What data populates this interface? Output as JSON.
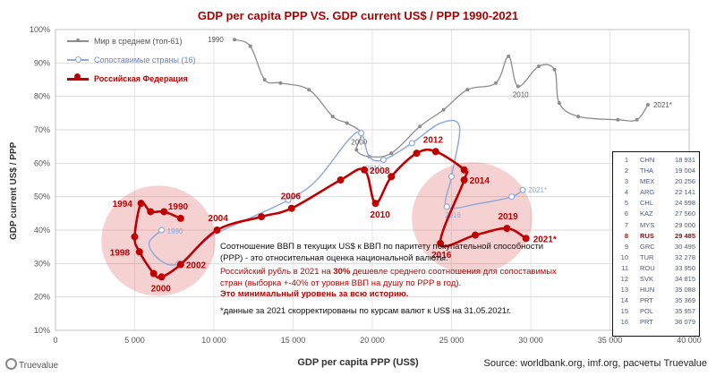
{
  "chart_data": {
    "type": "line",
    "title": "GDP per capita PPP   VS.   GDP current US$ / PPP   1990-2021",
    "xlabel": "GDP per capita PPP (US$)",
    "ylabel": "GDP current US$ / PPP",
    "xlim": [
      0,
      40000
    ],
    "ylim": [
      0.1,
      1.0
    ],
    "xticks": [
      0,
      5000,
      10000,
      15000,
      20000,
      25000,
      30000,
      35000,
      40000
    ],
    "xtick_labels": [
      "0",
      "5 000",
      "10 000",
      "15 000",
      "20 000",
      "25 000",
      "30 000",
      "35 000",
      "40 000"
    ],
    "yticks": [
      0.1,
      0.2,
      0.3,
      0.4,
      0.5,
      0.6,
      0.7,
      0.8,
      0.9,
      1.0
    ],
    "ytick_labels": [
      "10%",
      "20%",
      "30%",
      "40%",
      "50%",
      "60%",
      "70%",
      "80%",
      "90%",
      "100%"
    ],
    "grid": true,
    "legend_position": "top-left",
    "series": [
      {
        "name": "Мир в среднем (топ-61)",
        "color": "#8c8c8c",
        "marker": "dot",
        "points": [
          {
            "x": 11300,
            "y": 0.97,
            "label": "1990"
          },
          {
            "x": 12300,
            "y": 0.95
          },
          {
            "x": 13200,
            "y": 0.85
          },
          {
            "x": 14200,
            "y": 0.84
          },
          {
            "x": 16000,
            "y": 0.82
          },
          {
            "x": 17500,
            "y": 0.74
          },
          {
            "x": 18400,
            "y": 0.72
          },
          {
            "x": 19300,
            "y": 0.69
          },
          {
            "x": 19000,
            "y": 0.64,
            "label": "2000"
          },
          {
            "x": 19800,
            "y": 0.62
          },
          {
            "x": 21200,
            "y": 0.63
          },
          {
            "x": 23000,
            "y": 0.71
          },
          {
            "x": 24500,
            "y": 0.76
          },
          {
            "x": 26000,
            "y": 0.82
          },
          {
            "x": 27800,
            "y": 0.84
          },
          {
            "x": 28600,
            "y": 0.92
          },
          {
            "x": 29200,
            "y": 0.83,
            "label": "2010"
          },
          {
            "x": 30500,
            "y": 0.89
          },
          {
            "x": 31500,
            "y": 0.88
          },
          {
            "x": 31800,
            "y": 0.78
          },
          {
            "x": 33000,
            "y": 0.74
          },
          {
            "x": 35500,
            "y": 0.73
          },
          {
            "x": 36700,
            "y": 0.73
          },
          {
            "x": 37400,
            "y": 0.775,
            "label": "2021*"
          }
        ]
      },
      {
        "name": "Сопоставимые страны (16)",
        "color": "#8faadc",
        "marker": "circle",
        "points": [
          {
            "x": 6700,
            "y": 0.4,
            "label": "1990"
          },
          {
            "x": 5900,
            "y": 0.36
          },
          {
            "x": 6600,
            "y": 0.31
          },
          {
            "x": 7800,
            "y": 0.3
          },
          {
            "x": 9800,
            "y": 0.38
          },
          {
            "x": 12000,
            "y": 0.43
          },
          {
            "x": 14700,
            "y": 0.49
          },
          {
            "x": 16500,
            "y": 0.55
          },
          {
            "x": 18500,
            "y": 0.67
          },
          {
            "x": 19300,
            "y": 0.69
          },
          {
            "x": 19800,
            "y": 0.62
          },
          {
            "x": 20700,
            "y": 0.61,
            "label": "2010"
          },
          {
            "x": 22500,
            "y": 0.66
          },
          {
            "x": 24300,
            "y": 0.72
          },
          {
            "x": 25500,
            "y": 0.71
          },
          {
            "x": 25000,
            "y": 0.56
          },
          {
            "x": 24700,
            "y": 0.47,
            "label": "2016"
          },
          {
            "x": 26800,
            "y": 0.48
          },
          {
            "x": 28800,
            "y": 0.5
          },
          {
            "x": 29500,
            "y": 0.52,
            "label": "2021*"
          }
        ]
      },
      {
        "name": "Российская Федерация",
        "color": "#c00000",
        "marker": "dot",
        "points": [
          {
            "x": 7900,
            "y": 0.435,
            "label": "1990"
          },
          {
            "x": 6850,
            "y": 0.455
          },
          {
            "x": 6000,
            "y": 0.455
          },
          {
            "x": 5400,
            "y": 0.48,
            "label": "1994"
          },
          {
            "x": 5000,
            "y": 0.38
          },
          {
            "x": 5300,
            "y": 0.335,
            "label": "1998"
          },
          {
            "x": 6200,
            "y": 0.27
          },
          {
            "x": 6700,
            "y": 0.26,
            "label": "2000"
          },
          {
            "x": 7900,
            "y": 0.297,
            "label": "2002"
          },
          {
            "x": 10200,
            "y": 0.4,
            "label": "2004"
          },
          {
            "x": 13000,
            "y": 0.44
          },
          {
            "x": 14900,
            "y": 0.465,
            "label": "2006"
          },
          {
            "x": 18000,
            "y": 0.55
          },
          {
            "x": 19500,
            "y": 0.58,
            "label": "2008"
          },
          {
            "x": 20200,
            "y": 0.48,
            "label": "2010"
          },
          {
            "x": 21200,
            "y": 0.56
          },
          {
            "x": 22800,
            "y": 0.63
          },
          {
            "x": 24000,
            "y": 0.635,
            "label": "2012"
          },
          {
            "x": 25800,
            "y": 0.58
          },
          {
            "x": 25800,
            "y": 0.55,
            "label": "2014"
          },
          {
            "x": 24300,
            "y": 0.36,
            "label": "2016"
          },
          {
            "x": 26500,
            "y": 0.385
          },
          {
            "x": 28500,
            "y": 0.405,
            "label": "2019"
          },
          {
            "x": 29700,
            "y": 0.375,
            "label": "2021*"
          }
        ]
      }
    ],
    "highlights": [
      {
        "cx": 6500,
        "cy": 0.368,
        "rx": 3600,
        "ry": 0.165
      },
      {
        "cx": 26300,
        "cy": 0.436,
        "rx": 3800,
        "ry": 0.167
      }
    ]
  },
  "note": {
    "line1": "Соотношение ВВП в текущих US$ к ВВП по паритету покупательной способности (PPP) - это относительная оценка национальной валюты.",
    "line2_pre": "Российский рубль в 2021 на ",
    "line2_bold": "30%",
    "line2_post": " дешевле среднего соотношения для сопоставимых стран (выборка +-40% от уровня ВВП на душу по PPP в год).",
    "line3": "Это минимальный уровень за всю историю.",
    "line4": "*данные за 2021 скорректированы по курсам валют к US$ на 31.05.2021г."
  },
  "ranking": [
    {
      "n": "1",
      "code": "CHN",
      "value": "18 931"
    },
    {
      "n": "2",
      "code": "THA",
      "value": "19 004"
    },
    {
      "n": "3",
      "code": "MEX",
      "value": "20 256"
    },
    {
      "n": "4",
      "code": "ARG",
      "value": "22 141"
    },
    {
      "n": "5",
      "code": "CHL",
      "value": "24 998"
    },
    {
      "n": "6",
      "code": "KAZ",
      "value": "27 560"
    },
    {
      "n": "7",
      "code": "MYS",
      "value": "29 000"
    },
    {
      "n": "8",
      "code": "RUS",
      "value": "29 485",
      "highlight": true
    },
    {
      "n": "9",
      "code": "GRC",
      "value": "30 495"
    },
    {
      "n": "10",
      "code": "TUR",
      "value": "32 278"
    },
    {
      "n": "11",
      "code": "ROU",
      "value": "33 950"
    },
    {
      "n": "12",
      "code": "SVK",
      "value": "34 815"
    },
    {
      "n": "13",
      "code": "HUN",
      "value": "35 088"
    },
    {
      "n": "14",
      "code": "PRT",
      "value": "35 369"
    },
    {
      "n": "15",
      "code": "POL",
      "value": "35 957"
    },
    {
      "n": "16",
      "code": "PRT",
      "value": "36 079"
    }
  ],
  "source": "Source: worldbank.org, imf.org, расчеты Truevalue",
  "logo_text": "Truevalue"
}
